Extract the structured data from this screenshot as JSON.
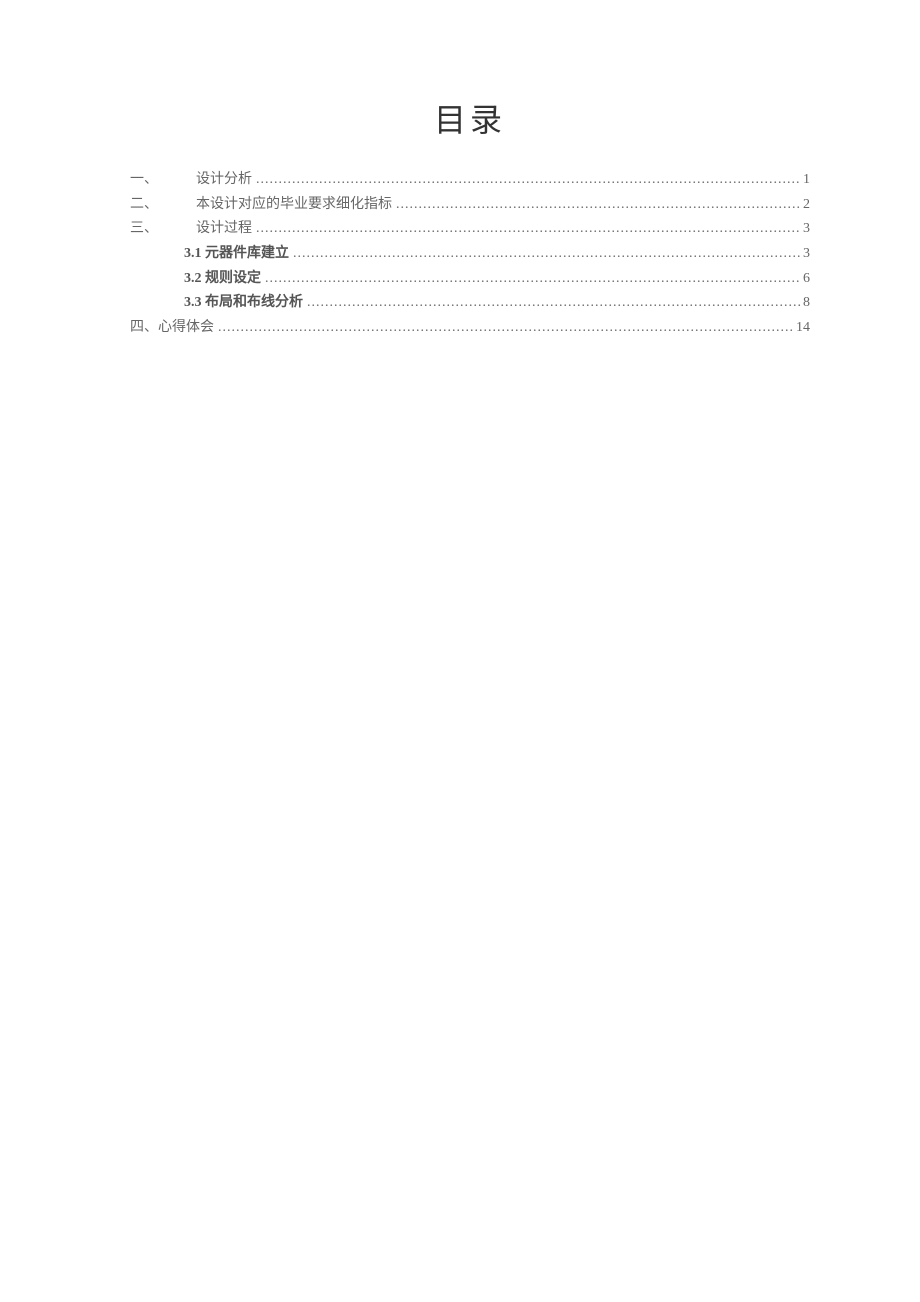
{
  "title": "目录",
  "dots": "..............................................................................................................................................................................................................",
  "entries": [
    {
      "number": "一、",
      "gap": "wide",
      "text": "设计分析",
      "page": "1",
      "bold": false,
      "indent": false
    },
    {
      "number": "二、",
      "gap": "wide",
      "text": "本设计对应的毕业要求细化指标",
      "page": "2",
      "bold": false,
      "indent": false
    },
    {
      "number": "三、",
      "gap": "wide",
      "text": "设计过程",
      "page": "3",
      "bold": false,
      "indent": false
    },
    {
      "number": "3.1",
      "gap": "space",
      "text": "元器件库建立",
      "page": "3",
      "bold": true,
      "indent": true
    },
    {
      "number": "3.2",
      "gap": "space",
      "text": "规则设定",
      "page": "6",
      "bold": true,
      "indent": true
    },
    {
      "number": "3.3",
      "gap": "space",
      "text": "布局和布线分析",
      "page": "8",
      "bold": true,
      "indent": true
    },
    {
      "number": "四、",
      "gap": "none",
      "text": "心得体会",
      "page": "14",
      "bold": false,
      "indent": false
    }
  ],
  "colors": {
    "text": "#666666",
    "title": "#333333",
    "background": "#ffffff"
  },
  "typography": {
    "title_fontsize": 32,
    "body_fontsize": 14,
    "font_family": "SimSun"
  }
}
